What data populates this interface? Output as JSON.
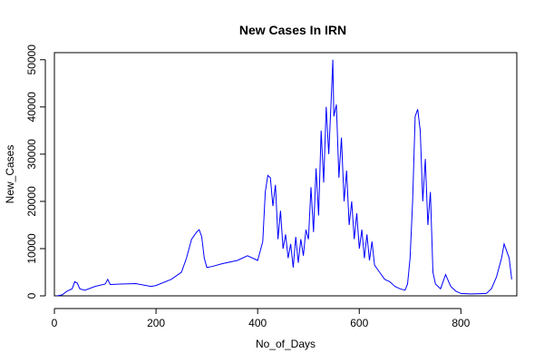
{
  "chart_data": {
    "type": "line",
    "title": "New Cases In IRN",
    "xlabel": "No_of_Days",
    "ylabel": "New_Cases",
    "xlim": [
      0,
      910
    ],
    "ylim": [
      0,
      51500
    ],
    "xticks": [
      0,
      200,
      400,
      600,
      800
    ],
    "yticks": [
      0,
      10000,
      20000,
      30000,
      40000,
      50000
    ],
    "grid": false,
    "series": [
      {
        "color": "#0000ff",
        "x": [
          5,
          15,
          25,
          35,
          40,
          45,
          50,
          60,
          80,
          100,
          105,
          110,
          130,
          160,
          190,
          200,
          230,
          250,
          260,
          270,
          280,
          285,
          290,
          295,
          300,
          310,
          330,
          360,
          380,
          400,
          410,
          415,
          420,
          425,
          430,
          435,
          440,
          445,
          450,
          455,
          460,
          465,
          470,
          475,
          480,
          485,
          490,
          495,
          500,
          505,
          510,
          515,
          520,
          525,
          530,
          535,
          540,
          545,
          548,
          550,
          555,
          560,
          565,
          570,
          575,
          580,
          585,
          590,
          595,
          600,
          605,
          610,
          615,
          620,
          625,
          630,
          640,
          650,
          660,
          670,
          680,
          690,
          695,
          700,
          705,
          710,
          715,
          720,
          725,
          730,
          735,
          740,
          745,
          750,
          760,
          770,
          780,
          790,
          800,
          820,
          850,
          860,
          870,
          875,
          880,
          885,
          890,
          895,
          900
        ],
        "y": [
          0,
          200,
          1000,
          1500,
          3000,
          2700,
          1500,
          1200,
          2000,
          2500,
          3500,
          2400,
          2500,
          2600,
          2000,
          2200,
          3500,
          5000,
          8000,
          12000,
          13500,
          14000,
          12500,
          8000,
          6000,
          6200,
          6800,
          7500,
          8500,
          7500,
          11500,
          22000,
          25500,
          25000,
          19000,
          23500,
          12000,
          18000,
          10000,
          13000,
          8000,
          11000,
          6000,
          12500,
          7000,
          12000,
          8500,
          14000,
          12000,
          23000,
          13500,
          27000,
          17000,
          35000,
          24000,
          40000,
          30000,
          42000,
          50000,
          38000,
          40500,
          25000,
          33500,
          20000,
          26500,
          15000,
          20000,
          12000,
          17500,
          10000,
          14000,
          8000,
          13000,
          7500,
          11500,
          6500,
          5000,
          3500,
          3000,
          2000,
          1500,
          1200,
          2500,
          8000,
          20000,
          38000,
          39500,
          35000,
          20000,
          29000,
          15000,
          22000,
          5000,
          2500,
          1500,
          4500,
          2000,
          1000,
          500,
          400,
          500,
          1500,
          4000,
          6000,
          8000,
          11000,
          9500,
          8000,
          3500
        ]
      }
    ]
  }
}
